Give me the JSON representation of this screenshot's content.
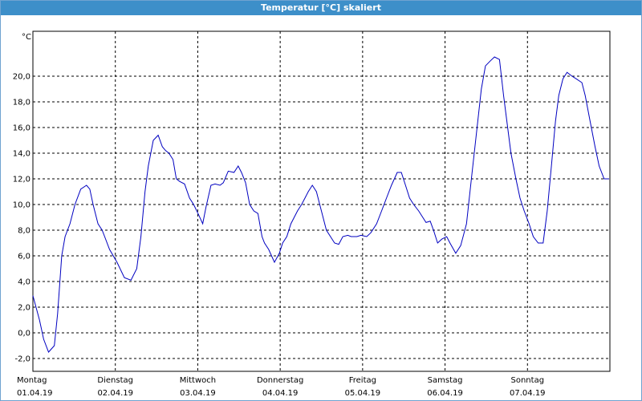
{
  "window": {
    "title": "Temperatur [°C] skaliert"
  },
  "chart_data": {
    "type": "line",
    "title": "Temperatur [°C] skaliert",
    "ylabel": "°C",
    "xlabel": "",
    "ylim": [
      -3.0,
      23.5
    ],
    "yticks": [
      -2.0,
      0.0,
      2.0,
      4.0,
      6.0,
      8.0,
      10.0,
      12.0,
      14.0,
      16.0,
      18.0,
      20.0
    ],
    "ytick_labels": [
      "-2,0",
      "0,0",
      "2,0",
      "4,0",
      "6,0",
      "8,0",
      "10,0",
      "12,0",
      "14,0",
      "16,0",
      "18,0",
      "20,0"
    ],
    "xlim": [
      0,
      7
    ],
    "days": [
      {
        "weekday": "Montag",
        "date": "01.04.19"
      },
      {
        "weekday": "Dienstag",
        "date": "02.04.19"
      },
      {
        "weekday": "Mittwoch",
        "date": "03.04.19"
      },
      {
        "weekday": "Donnerstag",
        "date": "04.04.19"
      },
      {
        "weekday": "Freitag",
        "date": "05.04.19"
      },
      {
        "weekday": "Samstag",
        "date": "06.04.19"
      },
      {
        "weekday": "Sonntag",
        "date": "07.04.19"
      }
    ],
    "grid": true,
    "series": [
      {
        "color": "#0000c0",
        "x": [
          0.0,
          0.08,
          0.13,
          0.19,
          0.26,
          0.3,
          0.35,
          0.39,
          0.45,
          0.51,
          0.58,
          0.65,
          0.69,
          0.73,
          0.79,
          0.84,
          0.87,
          0.93,
          1.02,
          1.11,
          1.19,
          1.26,
          1.31,
          1.36,
          1.4,
          1.46,
          1.52,
          1.57,
          1.61,
          1.65,
          1.7,
          1.74,
          1.78,
          1.84,
          1.9,
          1.95,
          2.01,
          2.06,
          2.1,
          2.16,
          2.21,
          2.27,
          2.31,
          2.37,
          2.44,
          2.49,
          2.53,
          2.58,
          2.63,
          2.68,
          2.73,
          2.78,
          2.81,
          2.86,
          2.93,
          2.99,
          3.03,
          3.08,
          3.13,
          3.17,
          3.21,
          3.26,
          3.3,
          3.34,
          3.39,
          3.44,
          3.5,
          3.56,
          3.61,
          3.66,
          3.71,
          3.76,
          3.82,
          3.86,
          3.93,
          3.98,
          4.05,
          4.1,
          4.17,
          4.23,
          4.29,
          4.35,
          4.42,
          4.47,
          4.52,
          4.57,
          4.62,
          4.68,
          4.73,
          4.77,
          4.82,
          4.86,
          4.91,
          4.96,
          5.02,
          5.06,
          5.13,
          5.19,
          5.26,
          5.32,
          5.38,
          5.44,
          5.49,
          5.55,
          5.6,
          5.66,
          5.71,
          5.76,
          5.8,
          5.86,
          5.91,
          5.96,
          6.02,
          6.07,
          6.13,
          6.19,
          6.24,
          6.29,
          6.34,
          6.38,
          6.43,
          6.48,
          6.54,
          6.59,
          6.66,
          6.7,
          6.76,
          6.82,
          6.87,
          6.93,
          6.99
        ],
        "y": [
          2.9,
          1.0,
          -0.5,
          -1.5,
          -1.0,
          1.5,
          6.0,
          7.5,
          8.5,
          10.0,
          11.2,
          11.5,
          11.2,
          10.0,
          8.5,
          8.0,
          7.5,
          6.5,
          5.5,
          4.3,
          4.1,
          5.0,
          7.5,
          11.0,
          13.0,
          15.0,
          15.4,
          14.5,
          14.2,
          14.0,
          13.5,
          12.0,
          11.8,
          11.6,
          10.5,
          10.0,
          9.2,
          8.5,
          9.8,
          11.5,
          11.6,
          11.5,
          11.7,
          12.6,
          12.5,
          13.0,
          12.5,
          11.7,
          10.0,
          9.5,
          9.3,
          7.5,
          7.0,
          6.5,
          5.5,
          6.2,
          7.0,
          7.5,
          8.5,
          9.0,
          9.5,
          10.0,
          10.5,
          11.0,
          11.5,
          11.0,
          9.5,
          8.0,
          7.5,
          7.0,
          6.9,
          7.5,
          7.6,
          7.5,
          7.5,
          7.6,
          7.5,
          7.8,
          8.5,
          9.5,
          10.5,
          11.5,
          12.5,
          12.5,
          11.5,
          10.5,
          10.0,
          9.5,
          9.0,
          8.6,
          8.7,
          8.0,
          7.0,
          7.3,
          7.5,
          7.0,
          6.2,
          6.8,
          8.5,
          12.0,
          15.5,
          19.0,
          20.8,
          21.2,
          21.5,
          21.3,
          18.5,
          16.0,
          14.0,
          12.0,
          10.5,
          9.5,
          8.5,
          7.5,
          7.0,
          7.0,
          9.5,
          13.0,
          16.5,
          18.5,
          19.8,
          20.3,
          20.0,
          19.8,
          19.5,
          18.5,
          16.5,
          14.5,
          13.0,
          12.0,
          12.0
        ]
      }
    ]
  }
}
